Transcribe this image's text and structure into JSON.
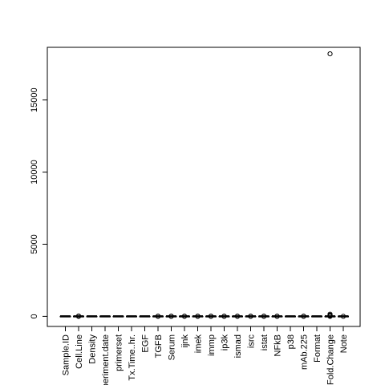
{
  "chart_data": {
    "type": "boxplot",
    "categories": [
      "Sample.ID",
      "Cell.Line",
      "Density",
      "periment.date",
      "primerset",
      "Tx.Time..hr.",
      "EGF",
      "TGFB",
      "Serum",
      "ijnk",
      "imek",
      "immp",
      "ip3k",
      "ismad",
      "isrc",
      "istat",
      "NFkB",
      "p38",
      "mAb.225",
      "Format",
      "Fold.Change",
      "Note"
    ],
    "ylim": [
      -700,
      18650
    ],
    "yticks": [
      0,
      5000,
      10000,
      15000
    ],
    "series": [
      {
        "category": "Sample.ID",
        "median": 0,
        "q1": 0,
        "q3": 0,
        "outliers": []
      },
      {
        "category": "Cell.Line",
        "median": 0,
        "q1": 0,
        "q3": 0,
        "outliers": [
          0,
          10,
          20
        ]
      },
      {
        "category": "Density",
        "median": 0,
        "q1": 0,
        "q3": 0,
        "outliers": []
      },
      {
        "category": "periment.date",
        "median": 0,
        "q1": 0,
        "q3": 0,
        "outliers": []
      },
      {
        "category": "primerset",
        "median": 0,
        "q1": 0,
        "q3": 0,
        "outliers": []
      },
      {
        "category": "Tx.Time..hr.",
        "median": 0,
        "q1": 0,
        "q3": 0,
        "outliers": []
      },
      {
        "category": "EGF",
        "median": 0,
        "q1": 0,
        "q3": 0,
        "outliers": []
      },
      {
        "category": "TGFB",
        "median": 0,
        "q1": 0,
        "q3": 0,
        "outliers": [
          0,
          10
        ]
      },
      {
        "category": "Serum",
        "median": 0,
        "q1": 0,
        "q3": 0,
        "outliers": [
          0,
          10
        ]
      },
      {
        "category": "ijnk",
        "median": 0,
        "q1": 0,
        "q3": 0,
        "outliers": [
          0,
          10
        ]
      },
      {
        "category": "imek",
        "median": 0,
        "q1": 0,
        "q3": 0,
        "outliers": [
          0,
          10
        ]
      },
      {
        "category": "immp",
        "median": 0,
        "q1": 0,
        "q3": 0,
        "outliers": [
          0,
          10
        ]
      },
      {
        "category": "ip3k",
        "median": 0,
        "q1": 0,
        "q3": 0,
        "outliers": [
          0,
          10
        ]
      },
      {
        "category": "ismad",
        "median": 0,
        "q1": 0,
        "q3": 0,
        "outliers": [
          0,
          10
        ]
      },
      {
        "category": "isrc",
        "median": 0,
        "q1": 0,
        "q3": 0,
        "outliers": [
          0,
          10
        ]
      },
      {
        "category": "istat",
        "median": 0,
        "q1": 0,
        "q3": 0,
        "outliers": [
          0,
          10
        ]
      },
      {
        "category": "NFkB",
        "median": 0,
        "q1": 0,
        "q3": 0,
        "outliers": [
          0,
          10
        ]
      },
      {
        "category": "p38",
        "median": 0,
        "q1": 0,
        "q3": 0,
        "outliers": []
      },
      {
        "category": "mAb.225",
        "median": 0,
        "q1": 0,
        "q3": 0,
        "outliers": [
          0,
          10
        ]
      },
      {
        "category": "Format",
        "median": 0,
        "q1": 0,
        "q3": 0,
        "outliers": []
      },
      {
        "category": "Fold.Change",
        "median": 0,
        "q1": 0,
        "q3": 0,
        "outliers": [
          0,
          40,
          80,
          150,
          18200
        ]
      },
      {
        "category": "Note",
        "median": 0,
        "q1": 0,
        "q3": 0,
        "outliers": [
          0
        ]
      }
    ],
    "title": "",
    "xlabel": "",
    "ylabel": ""
  },
  "colors": {
    "axis": "#000000",
    "box": "#000000",
    "background": "#ffffff"
  }
}
